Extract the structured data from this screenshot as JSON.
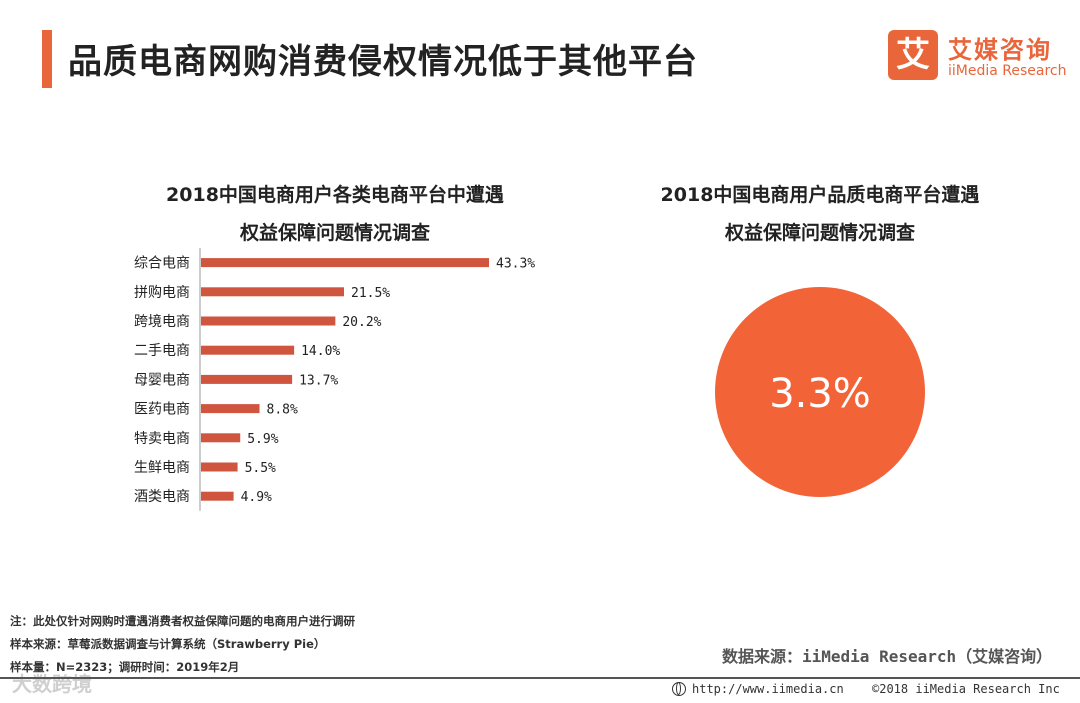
{
  "header": {
    "title": "品质电商网购消费侵权情况低于其他平台",
    "logo_mark": "艾",
    "logo_cn": "艾媒咨询",
    "logo_en": "iiMedia Research"
  },
  "colors": {
    "accent": "#e8663a",
    "bar": "#d0553f",
    "pie": "#f26438"
  },
  "chart_data": [
    {
      "type": "bar",
      "orientation": "horizontal",
      "title_lines": [
        "2018中国电商用户各类电商平台中遭遇",
        "权益保障问题情况调查"
      ],
      "categories": [
        "综合电商",
        "拼购电商",
        "跨境电商",
        "二手电商",
        "母婴电商",
        "医药电商",
        "特卖电商",
        "生鲜电商",
        "酒类电商"
      ],
      "values": [
        43.3,
        21.5,
        20.2,
        14.0,
        13.7,
        8.8,
        5.9,
        5.5,
        4.9
      ],
      "value_labels": [
        "43.3%",
        "21.5%",
        "20.2%",
        "14.0%",
        "13.7%",
        "8.8%",
        "5.9%",
        "5.5%",
        "4.9%"
      ],
      "unit": "%",
      "grid": false
    },
    {
      "type": "pie",
      "title_lines": [
        "2018中国电商用户品质电商平台遭遇",
        "权益保障问题情况调查"
      ],
      "value": 3.3,
      "value_label": "3.3%"
    }
  ],
  "notes": [
    "注：此处仅针对网购时遭遇消费者权益保障问题的电商用户进行调研",
    "样本来源：草莓派数据调查与计算系统（Strawberry  Pie）",
    "样本量：N=2323；调研时间：2019年2月"
  ],
  "source": "数据来源：iiMedia Research（艾媒咨询）",
  "footer": {
    "url": "http://www.iimedia.cn",
    "copyright": "©2018  iiMedia Research  Inc"
  },
  "watermark": "大数跨境"
}
